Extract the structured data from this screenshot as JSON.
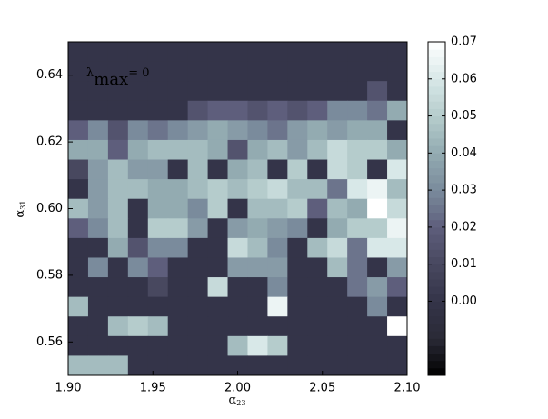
{
  "chart_data": {
    "type": "heatmap",
    "xlabel": {
      "symbol": "α",
      "subscript": "23"
    },
    "ylabel": {
      "symbol": "α",
      "subscript": "31"
    },
    "annotation": {
      "symbol": "λ",
      "subscript": "max",
      "text": "= 0"
    },
    "xlim": [
      1.9,
      2.1
    ],
    "ylim": [
      0.55,
      0.65
    ],
    "xticks": [
      {
        "value": 1.9,
        "label": "1.90"
      },
      1.95,
      {
        "value": 2.0,
        "label": "2.00"
      },
      2.05,
      {
        "value": 2.1,
        "label": "2.10"
      }
    ],
    "yticks": [
      0.56,
      0.58,
      {
        "value": 0.6,
        "label": "0.60"
      },
      0.62,
      0.64
    ],
    "zlim": [
      -0.02,
      0.07
    ],
    "zticks": [
      {
        "value": 0,
        "label": "0.00"
      },
      0.01,
      0.02,
      0.03,
      0.04,
      0.05,
      0.06,
      0.07
    ],
    "colormap": [
      "#000000",
      "#2a2a36",
      "#343449",
      "#48485f",
      "#5e5e7c",
      "#7a8b9c",
      "#93abb1",
      "#b5cccc",
      "#d8e8e8",
      "#ffffff"
    ],
    "z": [
      [
        0,
        0,
        0,
        0,
        0,
        0,
        0,
        0,
        0,
        0,
        0,
        0,
        0,
        0,
        0,
        0,
        0
      ],
      [
        0,
        0,
        0,
        0,
        0,
        0,
        0,
        0,
        0,
        0,
        0,
        0,
        0,
        0,
        0,
        0,
        0
      ],
      [
        0,
        0,
        0,
        0,
        0,
        0,
        0,
        0,
        0,
        0,
        0,
        0,
        0,
        0,
        0,
        0.015,
        0
      ],
      [
        0,
        0,
        0,
        0,
        0,
        0,
        0.015,
        0.02,
        0.02,
        0.015,
        0.02,
        0.015,
        0.02,
        0.03,
        0.03,
        0.025,
        0.04
      ],
      [
        0.02,
        0.03,
        0.015,
        0.03,
        0.025,
        0.03,
        0.035,
        0.04,
        0.035,
        0.03,
        0.025,
        0.035,
        0.04,
        0.035,
        0.04,
        0.04,
        0
      ],
      [
        0.04,
        0.04,
        0.02,
        0.04,
        0.045,
        0.045,
        0.045,
        0.04,
        0.015,
        0.04,
        0.045,
        0.035,
        0.045,
        0.055,
        0.05,
        0.05,
        0.04
      ],
      [
        0.01,
        0.035,
        0.045,
        0.035,
        0.035,
        0,
        0.045,
        0,
        0.04,
        0.045,
        0,
        0.05,
        0,
        0.055,
        0.05,
        0,
        0.06
      ],
      [
        0,
        0.035,
        0.045,
        0.045,
        0.04,
        0.04,
        0.045,
        0.05,
        0.045,
        0.05,
        0.055,
        0.045,
        0.045,
        0.025,
        0.06,
        0.065,
        0.045
      ],
      [
        0.045,
        0.035,
        0.045,
        0,
        0.04,
        0.04,
        0.03,
        0.05,
        0,
        0.045,
        0.045,
        0.05,
        0.02,
        0.045,
        0.04,
        0.07,
        0.055
      ],
      [
        0.02,
        0.03,
        0.045,
        0,
        0.05,
        0.05,
        0.035,
        0,
        0.035,
        0.04,
        0.035,
        0.03,
        0,
        0.04,
        0.05,
        0.05,
        0.065
      ],
      [
        0,
        0,
        0.04,
        0.015,
        0.03,
        0.03,
        0,
        0,
        0.055,
        0.045,
        0.03,
        0,
        0.045,
        0.055,
        0.025,
        0.06,
        0.06
      ],
      [
        0,
        0.03,
        0,
        0.03,
        0.02,
        0,
        0,
        0,
        0.035,
        0.035,
        0.035,
        0,
        0,
        0.045,
        0.025,
        0,
        0.035
      ],
      [
        0,
        0,
        0,
        0,
        0.01,
        0,
        0,
        0.055,
        0,
        0,
        0.03,
        0,
        0,
        0,
        0.025,
        0.035,
        0.02
      ],
      [
        0.045,
        0,
        0,
        0,
        0,
        0,
        0,
        0,
        0,
        0,
        0.065,
        0,
        0,
        0,
        0,
        0.03,
        0
      ],
      [
        0,
        0,
        0.045,
        0.05,
        0.045,
        0,
        0,
        0,
        0,
        0,
        0,
        0,
        0,
        0,
        0,
        0,
        0.07
      ],
      [
        0,
        0,
        0,
        0,
        0,
        0,
        0,
        0,
        0.045,
        0.06,
        0.05,
        0,
        0,
        0,
        0,
        0,
        0
      ],
      [
        0.045,
        0.045,
        0.045,
        0,
        0,
        0,
        0,
        0,
        0,
        0,
        0,
        0,
        0,
        0,
        0,
        0,
        0
      ]
    ]
  }
}
